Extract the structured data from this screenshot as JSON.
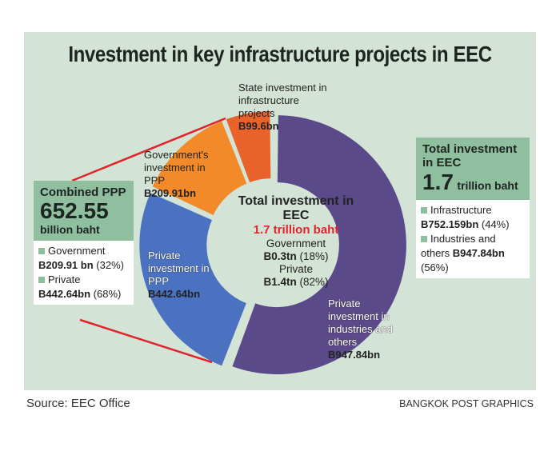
{
  "title": "Investment in key infrastructure projects in EEC",
  "chart_data": {
    "type": "pie",
    "title": "Investment in key infrastructure projects in EEC",
    "unit": "billion baht",
    "slices": [
      {
        "label": "Private investment in industries and others",
        "value": 947.84,
        "value_label": "B947.84bn",
        "color": "#5b4a8a"
      },
      {
        "label": "Private investment in PPP",
        "value": 442.64,
        "value_label": "B442.64bn",
        "color": "#4a72c0"
      },
      {
        "label": "Government's investment in PPP",
        "value": 209.91,
        "value_label": "B209.91bn",
        "color": "#f28a2a"
      },
      {
        "label": "State investment in infrastructure projects",
        "value": 99.6,
        "value_label": "B99.6bn",
        "color": "#e8622a"
      }
    ],
    "center": {
      "title": "Total investment in EEC",
      "total": "1.7 trillion baht",
      "gov_label": "Government",
      "gov_value": "B0.3tn",
      "gov_pct": "(18%)",
      "priv_label": "Private",
      "priv_value": "B1.4tn",
      "priv_pct": "(82%)"
    }
  },
  "left_box": {
    "title": "Combined PPP",
    "value": "652.55",
    "unit": "billion baht",
    "gov_label": "Government",
    "gov_value": "B209.91 bn",
    "gov_pct": "(32%)",
    "priv_label": "Private",
    "priv_value": "B442.64bn",
    "priv_pct": "(68%)"
  },
  "right_box": {
    "title1": "Total investment",
    "title2": "in EEC",
    "value": "1.7",
    "unit": "trillion baht",
    "infra_label": "Infrastructure",
    "infra_value": "B752.159bn",
    "infra_pct": "(44%)",
    "ind_label1": "Industries and",
    "ind_label2": "others",
    "ind_value": "B947.84bn",
    "ind_pct": "(56%)"
  },
  "source": "Source: EEC Office",
  "credit": "BANGKOK POST GRAPHICS"
}
